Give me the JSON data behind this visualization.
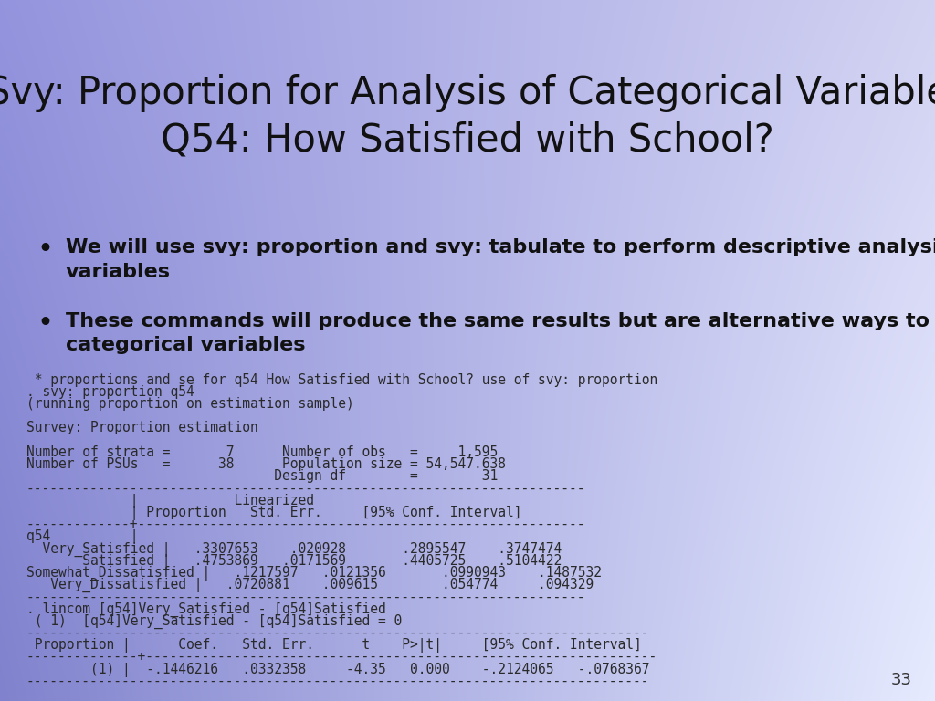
{
  "title_line1": "Svy: Proportion for Analysis of Categorical Variable",
  "title_line2": "Q54: How Satisfied with School?",
  "title_fontsize": 30,
  "title_color": "#111111",
  "bullet1_line1": "We will use svy: proportion and svy: tabulate to perform descriptive analysis of categorical",
  "bullet1_line2": "variables",
  "bullet2_line1": "These commands will produce the same results but are alternative ways to examine",
  "bullet2_line2": "categorical variables",
  "bullet_fontsize": 16,
  "code_fontsize": 10.5,
  "slide_number": "33",
  "code_lines": [
    " * proportions and se for q54 How Satisfied with School? use of svy: proportion",
    ". svy: proportion q54",
    "(running proportion on estimation sample)",
    "",
    "Survey: Proportion estimation",
    "",
    "Number of strata =       7      Number of obs   =     1,595",
    "Number of PSUs   =      38      Population size = 54,547.638",
    "                               Design df        =        31",
    "----------------------------------------------------------------------",
    "             |            Linearized",
    "             | Proportion   Std. Err.     [95% Conf. Interval]",
    "-------------+--------------------------------------------------------",
    "q54          |",
    "  Very_Satisfied |   .3307653    .020928       .2895547    .3747474",
    "       Satisfied |   .4753869   .0171569       .4405725    .5104422",
    "Somewhat_Dissatisfied |   .1217597   .0121356       .0990943    .1487532",
    "   Very_Dissatisfied |   .0720881    .009615        .054774     .094329",
    "----------------------------------------------------------------------",
    ". lincom [q54]Very_Satisfied - [q54]Satisfied",
    " ( 1)  [q54]Very_Satisfied - [q54]Satisfied = 0",
    "------------------------------------------------------------------------------",
    " Proportion |      Coef.   Std. Err.      t    P>|t|     [95% Conf. Interval]",
    "--------------+----------------------------------------------------------------",
    "        (1) |  -.1446216   .0332358     -4.35   0.000    -.2124065   -.0768367",
    "------------------------------------------------------------------------------"
  ]
}
